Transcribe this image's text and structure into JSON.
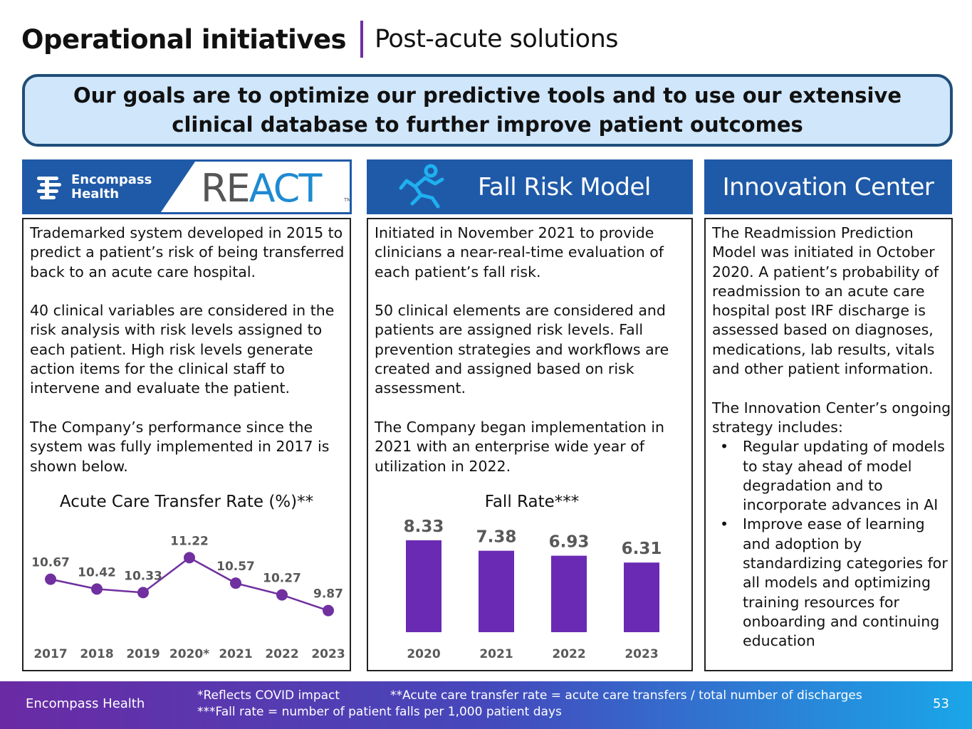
{
  "header": {
    "title": "Operational initiatives",
    "subtitle": "Post-acute solutions"
  },
  "goal": {
    "text": "Our goals are to optimize our predictive tools and to use our extensive clinical database to further improve patient outcomes"
  },
  "react": {
    "logo_line1": "Encompass",
    "logo_line2": "Health",
    "brand_re": "RE",
    "brand_act": "ACT",
    "brand_tm": "TM",
    "paragraphs": [
      "Trademarked system developed in 2015 to predict a patient’s risk of being transferred back to an acute care hospital.",
      "40 clinical variables are considered in the risk analysis with risk levels assigned to each patient. High risk levels generate action items for the clinical staff to intervene and evaluate the patient.",
      "The Company’s performance since the system was fully implemented in 2017 is shown below."
    ]
  },
  "fall": {
    "header": "Fall Risk Model",
    "paragraphs": [
      "Initiated in November 2021 to provide clinicians a near-real-time evaluation of each patient’s fall risk.",
      "50 clinical elements are considered and patients are assigned risk levels. Fall prevention strategies and workflows are created and assigned based on risk assessment.",
      "The Company began implementation in 2021 with an enterprise wide year of utilization in 2022."
    ]
  },
  "innovation": {
    "header": "Innovation Center",
    "paragraphs": [
      "The Readmission Prediction Model was initiated in October 2020. A patient’s probability of readmission to an acute care hospital post IRF discharge is assessed based on diagnoses, medications, lab results, vitals and other patient information.",
      "The Innovation Center’s ongoing strategy includes:"
    ],
    "bullet_char": "•",
    "bullets": [
      "Regular updating of models to stay ahead of model degradation and to incorporate advances in AI",
      "Improve ease of learning and adoption by standardizing categories for all models and optimizing training resources for onboarding and continuing education"
    ]
  },
  "chart_data": [
    {
      "type": "line",
      "title": "Acute Care Transfer Rate (%)**",
      "categories": [
        "2017",
        "2018",
        "2019",
        "2020*",
        "2021",
        "2022",
        "2023"
      ],
      "values": [
        10.67,
        10.42,
        10.33,
        11.22,
        10.57,
        10.27,
        9.87
      ],
      "labels": [
        "10.67",
        "10.42",
        "10.33",
        "11.22",
        "10.57",
        "10.27",
        "9.87"
      ],
      "color": "#7030a0",
      "xlabel": "",
      "ylabel": "",
      "grid": false
    },
    {
      "type": "bar",
      "title": "Fall Rate***",
      "categories": [
        "2020",
        "2021",
        "2022",
        "2023"
      ],
      "values": [
        8.33,
        7.38,
        6.93,
        6.31
      ],
      "labels": [
        "8.33",
        "7.38",
        "6.93",
        "6.31"
      ],
      "color": "#6a2ab3",
      "xlabel": "",
      "ylabel": "",
      "grid": false
    }
  ],
  "footer": {
    "company": "Encompass Health",
    "note_covid": "*Reflects COVID impact",
    "note_transfer": "**Acute care transfer rate = acute care transfers / total number of discharges",
    "note_fall": "***Fall rate = number of patient falls per 1,000 patient days",
    "page": "53"
  },
  "colors": {
    "accent": "#7030a0",
    "header_blue": "#1f5aa8",
    "goal_fill": "#cfe6fb",
    "goal_border": "#1f4e79",
    "label_gray": "#555555"
  }
}
